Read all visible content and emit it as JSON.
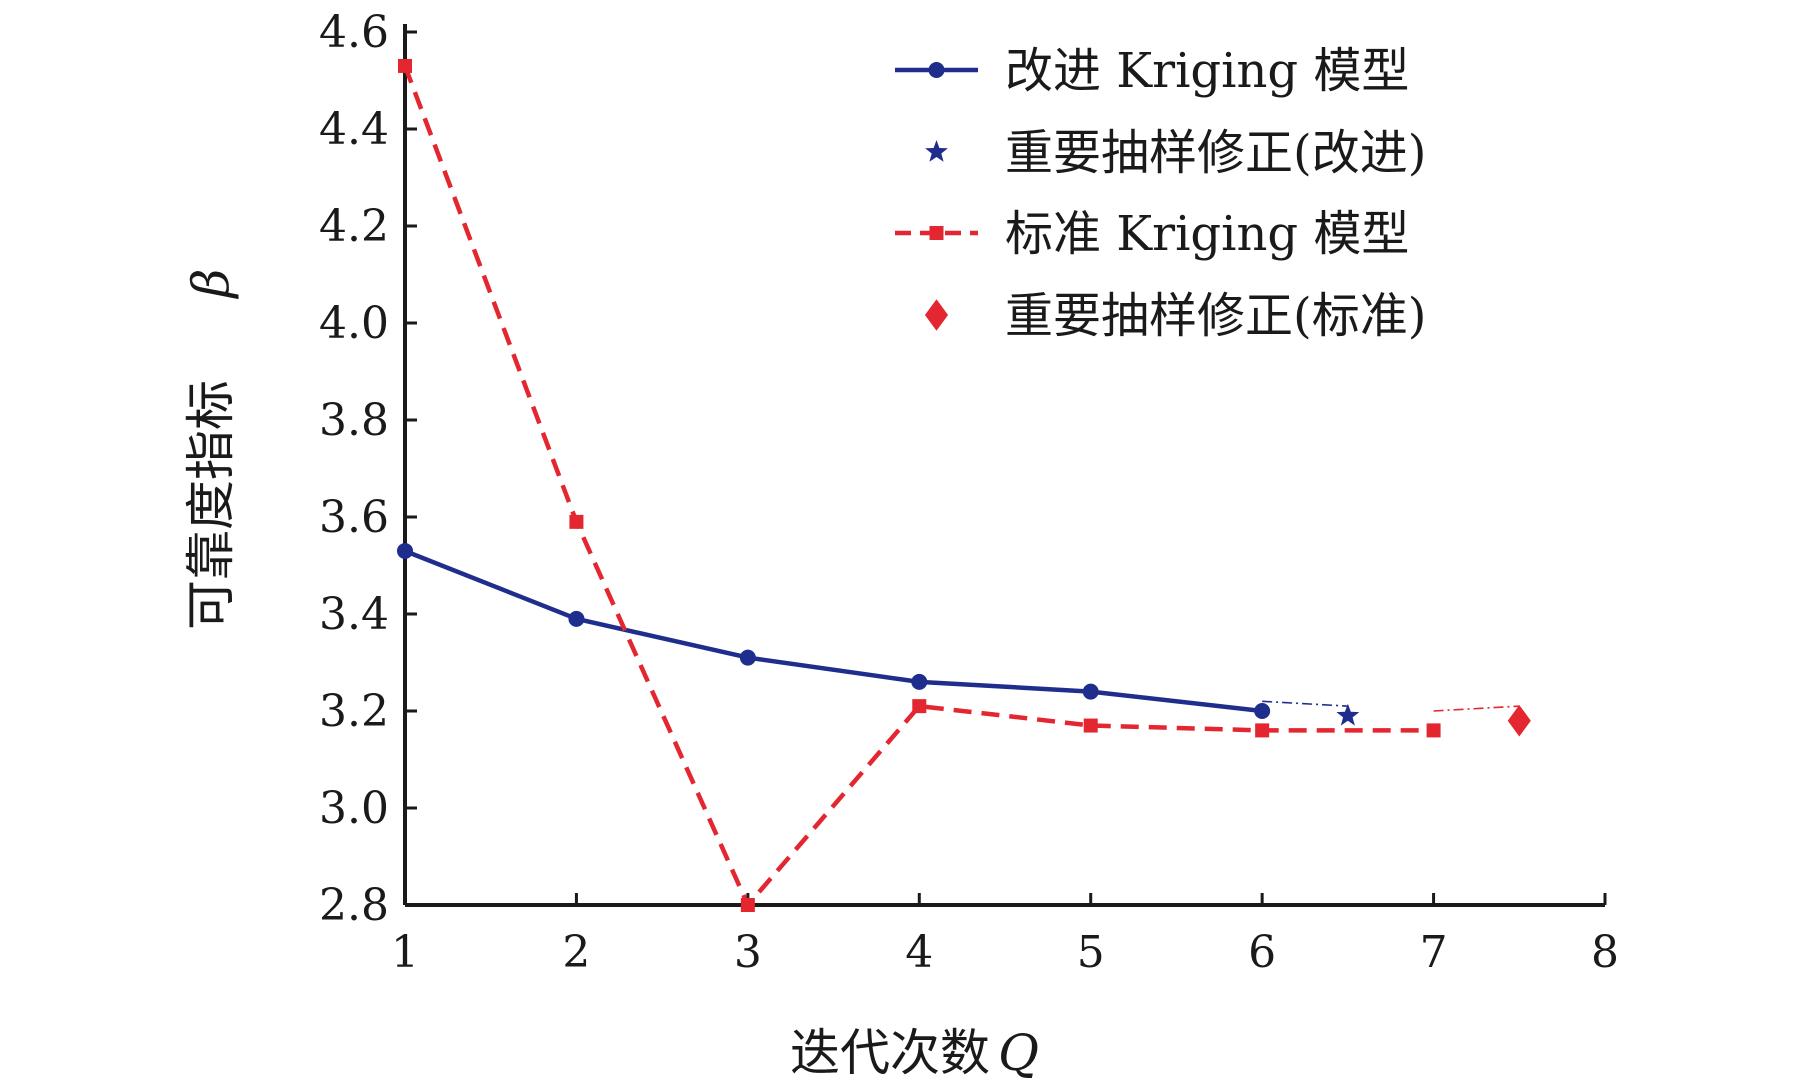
{
  "chart_data": {
    "type": "line",
    "title": "",
    "xlabel": "迭代次数",
    "xlabel_symbol": "Q",
    "ylabel": "可靠度指标",
    "ylabel_symbol": "β",
    "xlim": [
      1,
      8
    ],
    "ylim": [
      2.8,
      4.6
    ],
    "x_ticks": [
      "1",
      "2",
      "3",
      "4",
      "5",
      "6",
      "7",
      "8"
    ],
    "y_ticks": [
      "2.8",
      "3.0",
      "3.2",
      "3.4",
      "3.6",
      "3.8",
      "4.0",
      "4.2",
      "4.4",
      "4.6"
    ],
    "grid": false,
    "legend_position": "top-right",
    "series": [
      {
        "name": "改进 Kriging 模型",
        "style": "solid",
        "marker": "circle",
        "color": "#1f2e8c",
        "x": [
          1,
          2,
          3,
          4,
          5,
          6
        ],
        "y": [
          3.53,
          3.39,
          3.31,
          3.26,
          3.24,
          3.2
        ]
      },
      {
        "name": "重要抽样修正(改进)",
        "style": "none",
        "marker": "star",
        "color": "#1f2e8c",
        "x": [
          6.5
        ],
        "y": [
          3.19
        ]
      },
      {
        "name": "标准 Kriging 模型",
        "style": "dashed",
        "marker": "square",
        "color": "#e3262f",
        "x": [
          1,
          2,
          3,
          4,
          5,
          6,
          7
        ],
        "y": [
          4.53,
          3.59,
          2.8,
          3.21,
          3.17,
          3.16,
          3.16
        ]
      },
      {
        "name": "重要抽样修正(标准)",
        "style": "none",
        "marker": "diamond",
        "color": "#e3262f",
        "x": [
          7.5
        ],
        "y": [
          3.18
        ]
      }
    ],
    "connectors": [
      {
        "color": "#1f2e8c",
        "from": [
          6,
          3.22
        ],
        "to": [
          6.5,
          3.21
        ]
      },
      {
        "color": "#e3262f",
        "from": [
          7,
          3.2
        ],
        "to": [
          7.5,
          3.21
        ]
      }
    ]
  }
}
